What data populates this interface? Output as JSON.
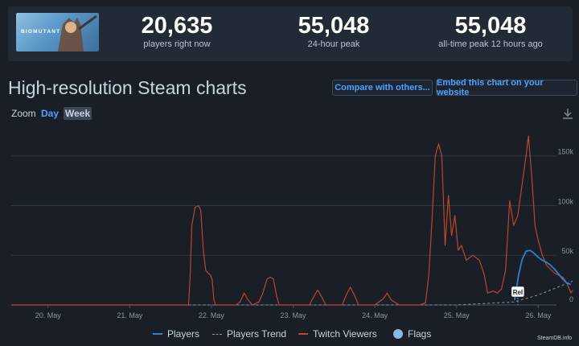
{
  "game": {
    "logo_text": "BIOMUTANT"
  },
  "stats": [
    {
      "value": "20,635",
      "label": "players right now"
    },
    {
      "value": "55,048",
      "label": "24-hour peak"
    },
    {
      "value": "55,048",
      "label": "all-time peak 12 hours ago"
    }
  ],
  "header": {
    "title": "High-resolution Steam charts",
    "compare_label": "Compare with others...",
    "embed_label": "Embed this chart on your website"
  },
  "zoom": {
    "label": "Zoom",
    "day": "Day",
    "week": "Week"
  },
  "legend": {
    "players": "Players",
    "trend": "Players Trend",
    "twitch": "Twitch Viewers",
    "flags": "Flags"
  },
  "watermark": "SteamDB.info",
  "colors": {
    "players": "#2f7fd0",
    "trend": "#8a96a3",
    "twitch": "#c0442c",
    "flags": "#8ab8e8",
    "accent": "#4aa3ff"
  },
  "chart_data": {
    "type": "line",
    "x_labels": [
      "20. May",
      "21. May",
      "22. May",
      "23. May",
      "24. May",
      "25. May",
      "26. May"
    ],
    "y_ticks": [
      "0",
      "50k",
      "100k",
      "150k"
    ],
    "ylim": [
      0,
      180000
    ],
    "flag": {
      "label": "Rel",
      "x": 25.75
    },
    "series": [
      {
        "name": "Twitch Viewers",
        "points": [
          [
            19.55,
            0
          ],
          [
            20.0,
            0
          ],
          [
            20.5,
            0
          ],
          [
            21.0,
            0
          ],
          [
            21.5,
            0
          ],
          [
            21.72,
            0
          ],
          [
            21.74,
            30000
          ],
          [
            21.76,
            80000
          ],
          [
            21.8,
            98000
          ],
          [
            21.84,
            100000
          ],
          [
            21.87,
            95000
          ],
          [
            21.9,
            55000
          ],
          [
            21.93,
            35000
          ],
          [
            21.96,
            32000
          ],
          [
            21.99,
            30000
          ],
          [
            22.01,
            25000
          ],
          [
            22.03,
            5000
          ],
          [
            22.05,
            0
          ],
          [
            22.3,
            0
          ],
          [
            22.35,
            3000
          ],
          [
            22.4,
            12000
          ],
          [
            22.45,
            5000
          ],
          [
            22.5,
            0
          ],
          [
            22.58,
            3000
          ],
          [
            22.63,
            12000
          ],
          [
            22.68,
            26000
          ],
          [
            22.72,
            28000
          ],
          [
            22.76,
            26000
          ],
          [
            22.8,
            8000
          ],
          [
            22.83,
            0
          ],
          [
            22.95,
            0
          ],
          [
            23.0,
            0
          ],
          [
            23.2,
            0
          ],
          [
            23.25,
            8000
          ],
          [
            23.3,
            15000
          ],
          [
            23.35,
            8000
          ],
          [
            23.4,
            0
          ],
          [
            23.6,
            0
          ],
          [
            23.65,
            10000
          ],
          [
            23.7,
            18000
          ],
          [
            23.75,
            10000
          ],
          [
            23.8,
            0
          ],
          [
            24.0,
            0
          ],
          [
            24.1,
            6000
          ],
          [
            24.15,
            12000
          ],
          [
            24.2,
            5000
          ],
          [
            24.3,
            0
          ],
          [
            24.55,
            0
          ],
          [
            24.62,
            2000
          ],
          [
            24.66,
            30000
          ],
          [
            24.7,
            85000
          ],
          [
            24.74,
            150000
          ],
          [
            24.78,
            162000
          ],
          [
            24.82,
            150000
          ],
          [
            24.86,
            60000
          ],
          [
            24.9,
            110000
          ],
          [
            24.94,
            70000
          ],
          [
            24.98,
            90000
          ],
          [
            25.02,
            55000
          ],
          [
            25.06,
            60000
          ],
          [
            25.12,
            45000
          ],
          [
            25.2,
            50000
          ],
          [
            25.28,
            45000
          ],
          [
            25.34,
            30000
          ],
          [
            25.38,
            12000
          ],
          [
            25.45,
            14000
          ],
          [
            25.5,
            12000
          ],
          [
            25.55,
            16000
          ],
          [
            25.6,
            35000
          ],
          [
            25.65,
            105000
          ],
          [
            25.7,
            80000
          ],
          [
            25.75,
            90000
          ],
          [
            25.8,
            120000
          ],
          [
            25.85,
            150000
          ],
          [
            25.88,
            170000
          ],
          [
            25.92,
            130000
          ],
          [
            25.96,
            80000
          ],
          [
            26.0,
            65000
          ],
          [
            26.05,
            50000
          ],
          [
            26.1,
            40000
          ],
          [
            26.15,
            36000
          ],
          [
            26.2,
            32000
          ],
          [
            26.25,
            30000
          ],
          [
            26.3,
            28000
          ],
          [
            26.35,
            22000
          ],
          [
            26.4,
            12000
          ],
          [
            26.42,
            15000
          ]
        ]
      },
      {
        "name": "Players",
        "points": [
          [
            25.71,
            5000
          ],
          [
            25.76,
            30000
          ],
          [
            25.8,
            45000
          ],
          [
            25.85,
            54000
          ],
          [
            25.9,
            55000
          ],
          [
            25.95,
            52000
          ],
          [
            26.0,
            48000
          ],
          [
            26.05,
            45000
          ],
          [
            26.1,
            43000
          ],
          [
            26.15,
            40000
          ],
          [
            26.2,
            36000
          ],
          [
            26.25,
            31000
          ],
          [
            26.3,
            26000
          ],
          [
            26.35,
            22000
          ],
          [
            26.4,
            20635
          ]
        ]
      },
      {
        "name": "Players Trend",
        "points": [
          [
            21.6,
            0
          ],
          [
            25.0,
            0
          ],
          [
            25.7,
            3000
          ],
          [
            26.0,
            10000
          ],
          [
            26.42,
            24000
          ]
        ]
      }
    ]
  }
}
